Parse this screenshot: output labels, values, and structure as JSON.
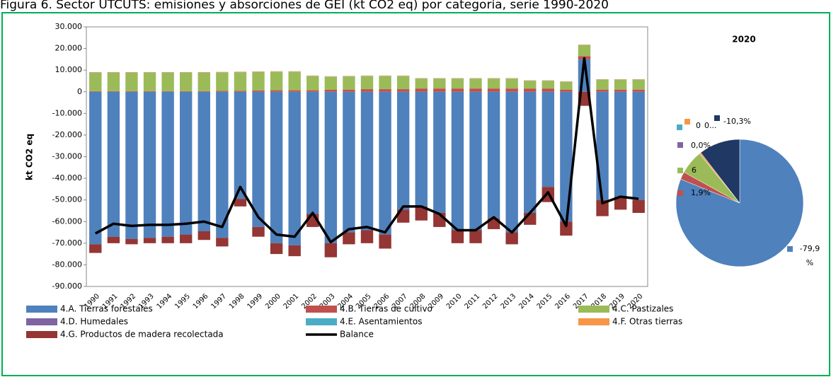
{
  "chart_data": [
    {
      "type": "bar",
      "stacked": true,
      "title": "Figura 6. Sector UTCUTS: emisiones y absorciones de GEI (kt CO2 eq) por categoría, serie 1990-2020",
      "y_label": "kt CO2 eq",
      "categories": [
        "1990",
        "1991",
        "1992",
        "1993",
        "1994",
        "1995",
        "1996",
        "1997",
        "1998",
        "1999",
        "2000",
        "2001",
        "2002",
        "2003",
        "2004",
        "2005",
        "2006",
        "2007",
        "2008",
        "2009",
        "2010",
        "2011",
        "2012",
        "2013",
        "2014",
        "2015",
        "2016",
        "2017",
        "2018",
        "2019",
        "2020"
      ],
      "ylim": [
        -90000,
        30000
      ],
      "yticks": [
        {
          "value": -90000,
          "label": "-90.000"
        },
        {
          "value": -80000,
          "label": "-80.000"
        },
        {
          "value": -70000,
          "label": "-70.000"
        },
        {
          "value": -60000,
          "label": "-60.000"
        },
        {
          "value": -50000,
          "label": "-50.000"
        },
        {
          "value": -40000,
          "label": "-40.000"
        },
        {
          "value": -30000,
          "label": "-30.000"
        },
        {
          "value": -20000,
          "label": "-20.000"
        },
        {
          "value": -10000,
          "label": "-10.000"
        },
        0,
        {
          "value": 10000,
          "label": "10.000"
        },
        {
          "value": 20000,
          "label": "20.000"
        },
        {
          "value": 30000,
          "label": "30.000"
        }
      ],
      "series": [
        {
          "name": "4.A. Tierras forestales",
          "color": "#4f81bd",
          "values": [
            -70500,
            -67000,
            -68000,
            -67500,
            -67000,
            -66000,
            -64500,
            -67500,
            -49500,
            -62500,
            -70000,
            -71000,
            -56500,
            -70000,
            -65000,
            -64000,
            -66000,
            -54500,
            -53000,
            -56000,
            -64000,
            -64000,
            -58500,
            -65000,
            -56000,
            -44000,
            -60000,
            15000,
            -50000,
            -48500,
            -50000
          ]
        },
        {
          "name": "4.B. Tierras de cultivo",
          "color": "#c0504d",
          "values": [
            300,
            300,
            300,
            300,
            300,
            300,
            300,
            400,
            500,
            600,
            700,
            700,
            700,
            900,
            1000,
            1200,
            1200,
            1200,
            1500,
            1500,
            1500,
            1500,
            1500,
            1500,
            1500,
            1500,
            1000,
            1500,
            1000,
            1000,
            1000
          ]
        },
        {
          "name": "4.C. Pastizales",
          "color": "#9bbb59",
          "values": [
            8500,
            8500,
            8500,
            8500,
            8500,
            8500,
            8500,
            8500,
            8500,
            8500,
            8500,
            8500,
            6500,
            6000,
            6000,
            6000,
            6000,
            6000,
            4500,
            4500,
            4500,
            4500,
            4500,
            4500,
            3500,
            3500,
            3500,
            5000,
            4500,
            4500,
            4500
          ]
        },
        {
          "name": "4.D. Humedales",
          "color": "#8064a2",
          "values": [
            0,
            0,
            0,
            0,
            0,
            0,
            0,
            0,
            0,
            0,
            0,
            0,
            0,
            0,
            0,
            0,
            0,
            0,
            0,
            0,
            0,
            0,
            0,
            0,
            0,
            0,
            0,
            0,
            0,
            0,
            0
          ]
        },
        {
          "name": "4.E. Asentamientos",
          "color": "#4bacc6",
          "values": [
            100,
            100,
            100,
            100,
            100,
            100,
            100,
            100,
            100,
            100,
            100,
            100,
            100,
            100,
            100,
            100,
            100,
            100,
            100,
            100,
            100,
            100,
            100,
            100,
            100,
            100,
            100,
            100,
            100,
            100,
            100
          ]
        },
        {
          "name": "4.F. Otras tierras",
          "color": "#f79646",
          "values": [
            200,
            200,
            200,
            200,
            200,
            200,
            200,
            200,
            200,
            200,
            200,
            200,
            200,
            200,
            200,
            200,
            200,
            200,
            200,
            200,
            200,
            200,
            200,
            200,
            200,
            200,
            200,
            200,
            200,
            200,
            200
          ]
        },
        {
          "name": "4.G. Productos de madera recolectada",
          "color": "#943634",
          "values": [
            -4000,
            -3000,
            -2500,
            -2500,
            -3000,
            -4000,
            -4000,
            -4000,
            -3500,
            -4500,
            -5000,
            -5000,
            -6000,
            -6500,
            -5500,
            -6000,
            -6500,
            -6000,
            -6500,
            -6500,
            -6000,
            -6000,
            -5000,
            -5500,
            -5500,
            -7000,
            -6500,
            -6500,
            -7500,
            -6000,
            -6000
          ]
        },
        {
          "name": "Balance",
          "type": "line",
          "color": "#000000",
          "values": [
            -65500,
            -61000,
            -62000,
            -61500,
            -61500,
            -61000,
            -60000,
            -62500,
            -44000,
            -58000,
            -66000,
            -67000,
            -56000,
            -69500,
            -63500,
            -62500,
            -65000,
            -53000,
            -53000,
            -56500,
            -64000,
            -64000,
            -58000,
            -65000,
            -56000,
            -46500,
            -62000,
            15500,
            -51500,
            -48500,
            -49500
          ]
        }
      ]
    },
    {
      "type": "pie",
      "title": "2020",
      "values": [
        -79.9,
        1.9,
        6,
        0.0,
        0,
        0.4,
        -10.3
      ],
      "value_labels": [
        "-79,9 %",
        "1,9%",
        "6",
        "0,0%",
        "0",
        "0...",
        "-10,3%"
      ],
      "colors": [
        "#4f81bd",
        "#c0504d",
        "#9bbb59",
        "#8064a2",
        "#4bacc6",
        "#f79646",
        "#1f3864"
      ]
    }
  ]
}
